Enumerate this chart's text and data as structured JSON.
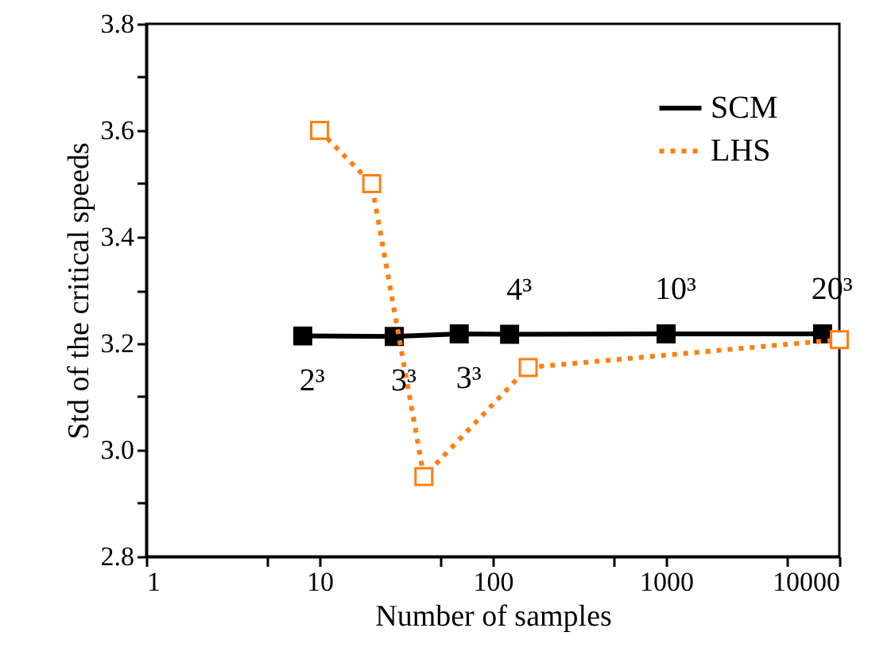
{
  "chart_data": {
    "type": "line",
    "xlabel": "Number of samples",
    "ylabel": "Std of the critical speeds",
    "log": "x",
    "xlim": [
      1,
      10000
    ],
    "xticks": [
      1,
      {
        "value": 5,
        "label": null
      },
      10,
      {
        "value": 50,
        "label": null
      },
      100,
      {
        "value": 500,
        "label": null
      },
      1000,
      {
        "value": 5000,
        "label": null
      },
      10000
    ],
    "ylim": [
      2.8,
      3.8
    ],
    "yticks": [
      2.8,
      {
        "value": 2.9,
        "label": null
      },
      "3.0",
      {
        "value": 3.1,
        "label": null
      },
      3.2,
      {
        "value": 3.3,
        "label": null
      },
      3.4,
      {
        "value": 3.5,
        "label": null
      },
      3.6,
      {
        "value": 3.7,
        "label": null
      },
      3.8
    ],
    "grid": false,
    "legend": "top right",
    "marker": "square",
    "series": [
      {
        "name": "SCM",
        "color": "#000000",
        "line_style": "solid",
        "x": [
          8,
          27,
          64,
          125,
          1000,
          8000
        ],
        "values": [
          3.214,
          3.213,
          3.218,
          3.217,
          3.218,
          3.218
        ]
      },
      {
        "name": "LHS",
        "color": "#ff7f0e",
        "line_style": "dotted",
        "x": [
          10,
          20,
          40,
          160,
          10000
        ],
        "values": [
          3.6,
          3.5,
          2.95,
          3.155,
          3.207
        ]
      }
    ],
    "annotations": [
      {
        "text": "2³",
        "x": 8,
        "y": 3.214
      },
      {
        "text": "3³",
        "x": 27,
        "y": 3.213
      },
      {
        "text": "3³",
        "x": 64,
        "y": 3.218
      },
      {
        "text": "4³",
        "x": 125,
        "y": 3.217
      },
      {
        "text": "10³",
        "x": 1000,
        "y": 3.218
      },
      {
        "text": "20³",
        "x": 8000,
        "y": 3.218
      }
    ]
  }
}
